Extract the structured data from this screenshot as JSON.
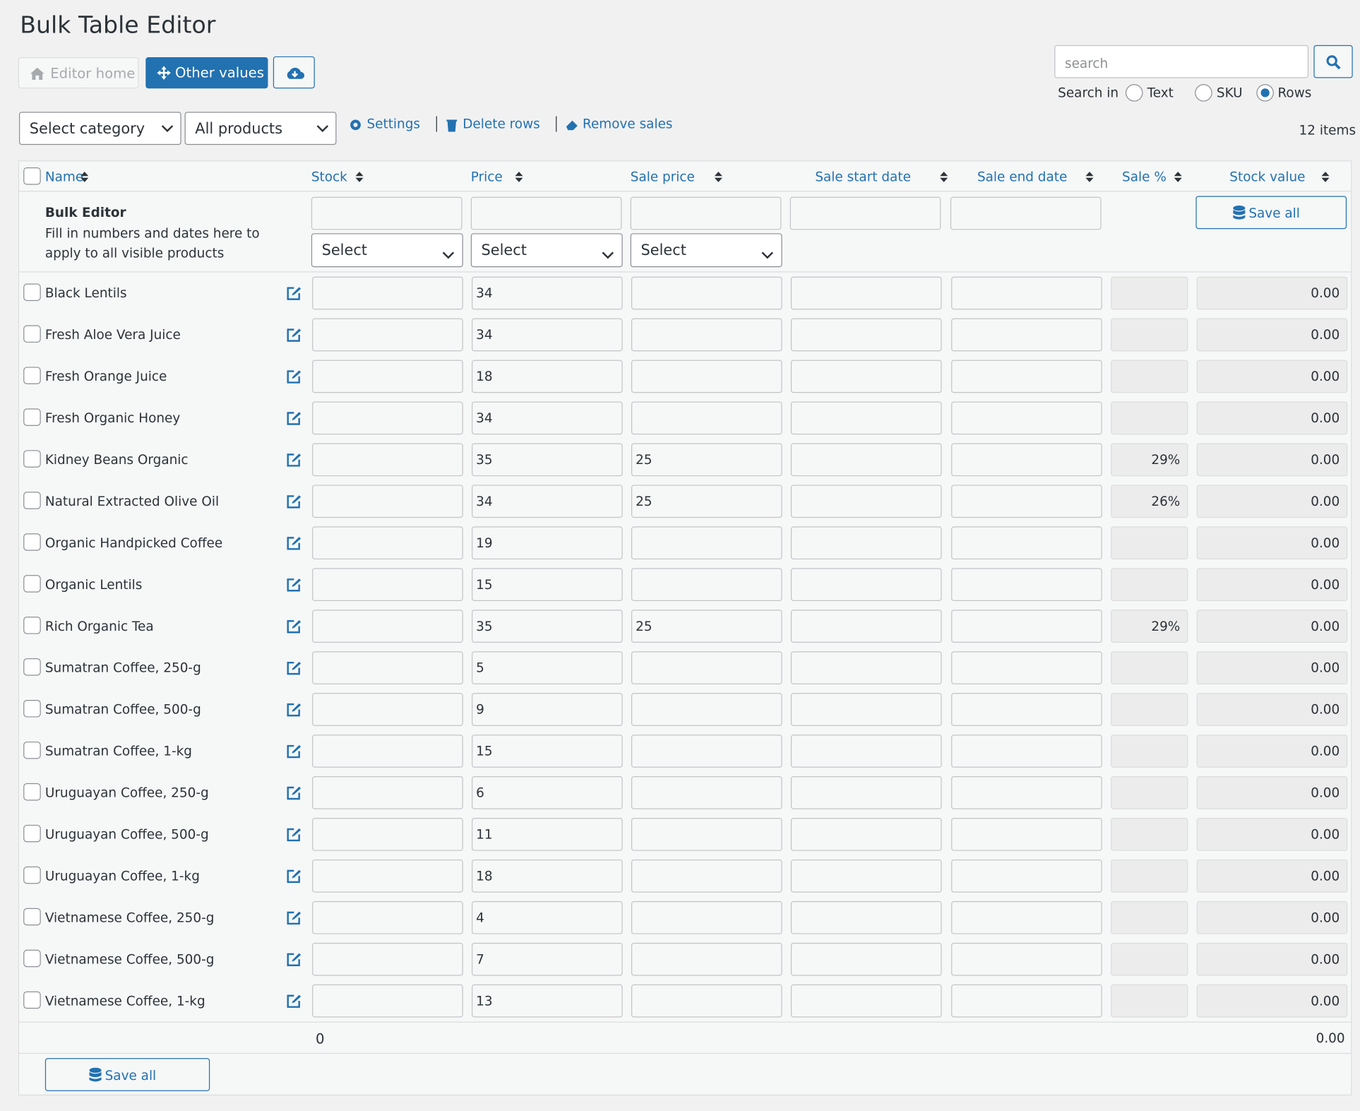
{
  "header": {
    "title": "Bulk Table Editor"
  },
  "toolbar": {
    "editor_home": "Editor home",
    "other_values": "Other values"
  },
  "search": {
    "placeholder": "search",
    "search_in": "Search in",
    "options": [
      "Text",
      "SKU",
      "Rows"
    ],
    "selected": "Rows"
  },
  "filters": {
    "category": "Select category",
    "products": "All products",
    "links": [
      "Settings",
      "Delete rows",
      "Remove sales"
    ],
    "item_count": "12 items"
  },
  "table": {
    "columns": [
      "Name",
      "Stock",
      "Price",
      "Sale price",
      "Sale start date",
      "Sale end date",
      "Sale %",
      "Stock value"
    ],
    "bulk_editor": {
      "title": "Bulk Editor",
      "description": "Fill in numbers and dates here to apply to all visible products",
      "selects": [
        "Select",
        "Select",
        "Select"
      ],
      "save": "Save all"
    },
    "rows": [
      {
        "name": "Black Lentils",
        "price": "34",
        "stock_value": "0.00"
      },
      {
        "name": "Fresh Aloe Vera Juice",
        "price": "34",
        "stock_value": "0.00"
      },
      {
        "name": "Fresh Orange Juice",
        "price": "18",
        "stock_value": "0.00"
      },
      {
        "name": "Fresh Organic Honey",
        "price": "34",
        "stock_value": "0.00"
      },
      {
        "name": "Kidney Beans Organic",
        "price": "35",
        "sale_price": "25",
        "sale_percent": "29%",
        "stock_value": "0.00"
      },
      {
        "name": "Natural Extracted Olive Oil",
        "price": "34",
        "sale_price": "25",
        "sale_percent": "26%",
        "stock_value": "0.00"
      },
      {
        "name": "Organic Handpicked Coffee",
        "price": "19",
        "stock_value": "0.00"
      },
      {
        "name": "Organic Lentils",
        "price": "15",
        "stock_value": "0.00"
      },
      {
        "name": "Rich Organic Tea",
        "price": "35",
        "sale_price": "25",
        "sale_percent": "29%",
        "stock_value": "0.00"
      },
      {
        "name": "Sumatran Coffee, 250-g",
        "price": "5",
        "stock_value": "0.00"
      },
      {
        "name": "Sumatran Coffee, 500-g",
        "price": "9",
        "stock_value": "0.00"
      },
      {
        "name": "Sumatran Coffee, 1-kg",
        "price": "15",
        "stock_value": "0.00"
      },
      {
        "name": "Uruguayan Coffee, 250-g",
        "price": "6",
        "stock_value": "0.00"
      },
      {
        "name": "Uruguayan Coffee, 500-g",
        "price": "11",
        "stock_value": "0.00"
      },
      {
        "name": "Uruguayan Coffee, 1-kg",
        "price": "18",
        "stock_value": "0.00"
      },
      {
        "name": "Vietnamese Coffee, 250-g",
        "price": "4",
        "stock_value": "0.00"
      },
      {
        "name": "Vietnamese Coffee, 500-g",
        "price": "7",
        "stock_value": "0.00"
      },
      {
        "name": "Vietnamese Coffee, 1-kg",
        "price": "13",
        "stock_value": "0.00"
      }
    ],
    "totals": {
      "stock": "0",
      "stock_value": "0.00"
    },
    "save": "Save all"
  }
}
